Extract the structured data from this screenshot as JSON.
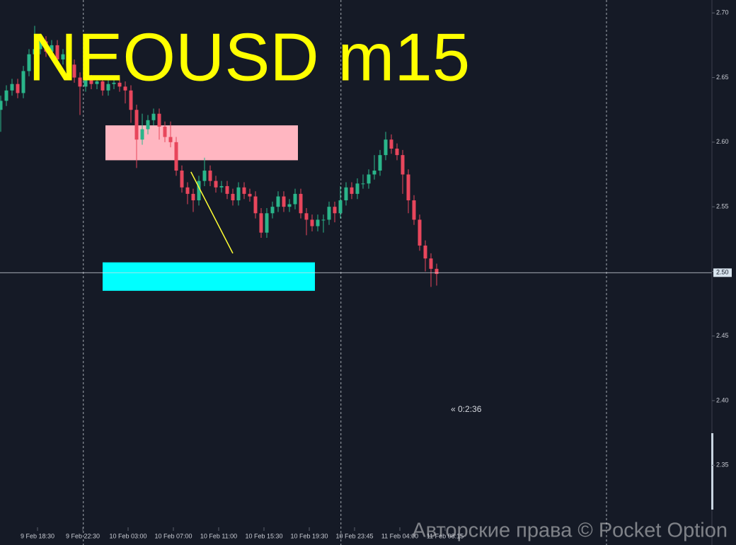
{
  "chart_data": {
    "type": "candlestick",
    "title": "NEOUSD m15",
    "timer": "« 0:2:36",
    "watermark": "Авторские права © Pocket Option",
    "ylim": [
      2.302,
      2.71
    ],
    "yticks": [
      {
        "value": 2.7,
        "label": "2.70"
      },
      2.65,
      {
        "value": 2.6,
        "label": "2.60"
      },
      2.55,
      {
        "value": 2.5,
        "label": "2.50"
      },
      2.45,
      {
        "value": 2.4,
        "label": "2.40"
      },
      2.35
    ],
    "xlim": [
      -0.125,
      125.5
    ],
    "xticks": [
      {
        "value": 6.5,
        "label": "9 Feb 18:30"
      },
      {
        "value": 14.5,
        "label": "9 Feb 22:30"
      },
      {
        "value": 22.5,
        "label": "10 Feb 03:00"
      },
      {
        "value": 30.5,
        "label": "10 Feb 07:00"
      },
      {
        "value": 38.5,
        "label": "10 Feb 11:00"
      },
      {
        "value": 46.5,
        "label": "10 Feb 15:30"
      },
      {
        "value": 54.5,
        "label": "10 Feb 19:30"
      },
      {
        "value": 62.5,
        "label": "10 Feb 23:45"
      },
      {
        "value": 70.5,
        "label": "11 Feb 04:00"
      },
      {
        "value": 78.5,
        "label": "11 Feb 08:15"
      }
    ],
    "vlines": [
      14.6,
      60.1,
      107
    ],
    "up_color": "#2ab58a",
    "down_color": "#e8465c",
    "open": [
      2.625,
      2.632,
      2.64,
      2.645,
      2.638,
      2.655,
      2.668,
      2.672,
      2.678,
      2.67,
      2.675,
      2.664,
      2.668,
      2.66,
      2.65,
      2.643,
      2.648,
      2.645,
      2.647,
      2.64,
      2.645,
      2.646,
      2.643,
      2.64,
      2.625,
      2.602,
      2.61,
      2.617,
      2.622,
      2.612,
      2.604,
      2.6,
      2.578,
      2.565,
      2.56,
      2.555,
      2.57,
      2.578,
      2.57,
      2.565,
      2.566,
      2.56,
      2.555,
      2.565,
      2.56,
      2.558,
      2.545,
      2.53,
      2.545,
      2.55,
      2.558,
      2.55,
      2.552,
      2.56,
      2.545,
      2.54,
      2.535,
      2.54,
      2.54,
      2.55,
      2.545,
      2.555,
      2.565,
      2.56,
      2.568,
      2.568,
      2.575,
      2.578,
      2.59,
      2.602,
      2.595,
      2.59,
      2.575,
      2.555,
      2.54,
      2.52,
      2.51,
      2.502
    ],
    "high": [
      2.636,
      2.644,
      2.649,
      2.649,
      2.659,
      2.672,
      2.69,
      2.684,
      2.682,
      2.679,
      2.679,
      2.672,
      2.672,
      2.664,
      2.654,
      2.652,
      2.652,
      2.651,
      2.651,
      2.649,
      2.65,
      2.65,
      2.647,
      2.644,
      2.629,
      2.622,
      2.621,
      2.626,
      2.626,
      2.616,
      2.616,
      2.604,
      2.582,
      2.569,
      2.564,
      2.574,
      2.588,
      2.582,
      2.574,
      2.57,
      2.57,
      2.564,
      2.569,
      2.569,
      2.564,
      2.562,
      2.549,
      2.549,
      2.554,
      2.562,
      2.562,
      2.556,
      2.564,
      2.564,
      2.549,
      2.544,
      2.544,
      2.544,
      2.554,
      2.554,
      2.566,
      2.569,
      2.569,
      2.572,
      2.575,
      2.579,
      2.59,
      2.594,
      2.608,
      2.606,
      2.599,
      2.594,
      2.579,
      2.559,
      2.544,
      2.524,
      2.514,
      2.506
    ],
    "low": [
      2.608,
      2.628,
      2.636,
      2.634,
      2.634,
      2.651,
      2.664,
      2.668,
      2.666,
      2.666,
      2.66,
      2.66,
      2.656,
      2.646,
      2.621,
      2.639,
      2.641,
      2.641,
      2.636,
      2.636,
      2.641,
      2.639,
      2.63,
      2.615,
      2.58,
      2.598,
      2.606,
      2.613,
      2.602,
      2.6,
      2.596,
      2.574,
      2.561,
      2.552,
      2.546,
      2.551,
      2.566,
      2.566,
      2.561,
      2.561,
      2.556,
      2.551,
      2.551,
      2.556,
      2.554,
      2.541,
      2.526,
      2.526,
      2.541,
      2.546,
      2.546,
      2.546,
      2.548,
      2.541,
      2.528,
      2.531,
      2.531,
      2.53,
      2.536,
      2.538,
      2.541,
      2.551,
      2.556,
      2.556,
      2.564,
      2.564,
      2.571,
      2.574,
      2.586,
      2.591,
      2.586,
      2.56,
      2.545,
      2.536,
      2.516,
      2.5,
      2.488,
      2.489
    ],
    "close": [
      2.632,
      2.64,
      2.645,
      2.638,
      2.655,
      2.668,
      2.672,
      2.678,
      2.67,
      2.675,
      2.664,
      2.668,
      2.66,
      2.65,
      2.643,
      2.648,
      2.645,
      2.647,
      2.64,
      2.645,
      2.646,
      2.643,
      2.64,
      2.625,
      2.602,
      2.61,
      2.617,
      2.622,
      2.612,
      2.604,
      2.6,
      2.578,
      2.565,
      2.56,
      2.555,
      2.57,
      2.578,
      2.57,
      2.565,
      2.566,
      2.56,
      2.555,
      2.565,
      2.56,
      2.558,
      2.545,
      2.53,
      2.545,
      2.55,
      2.558,
      2.55,
      2.552,
      2.56,
      2.545,
      2.54,
      2.535,
      2.54,
      2.54,
      2.55,
      2.545,
      2.555,
      2.565,
      2.56,
      2.568,
      2.568,
      2.575,
      2.578,
      2.59,
      2.602,
      2.595,
      2.59,
      2.575,
      2.555,
      2.54,
      2.52,
      2.51,
      2.502,
      2.498
    ],
    "zones": [
      {
        "x": [
          18.5,
          52.5
        ],
        "y": [
          2.586,
          2.613
        ],
        "color": "#ffb6c1"
      },
      {
        "x": [
          18.0,
          55.5
        ],
        "y": [
          2.485,
          2.507
        ],
        "color": "#00ffff"
      }
    ],
    "trendline": {
      "x": [
        33.6,
        41.0
      ],
      "y": [
        2.577,
        2.514
      ],
      "color": "#ffff33"
    },
    "price_line": {
      "value": 2.499,
      "label": "2.50"
    }
  }
}
